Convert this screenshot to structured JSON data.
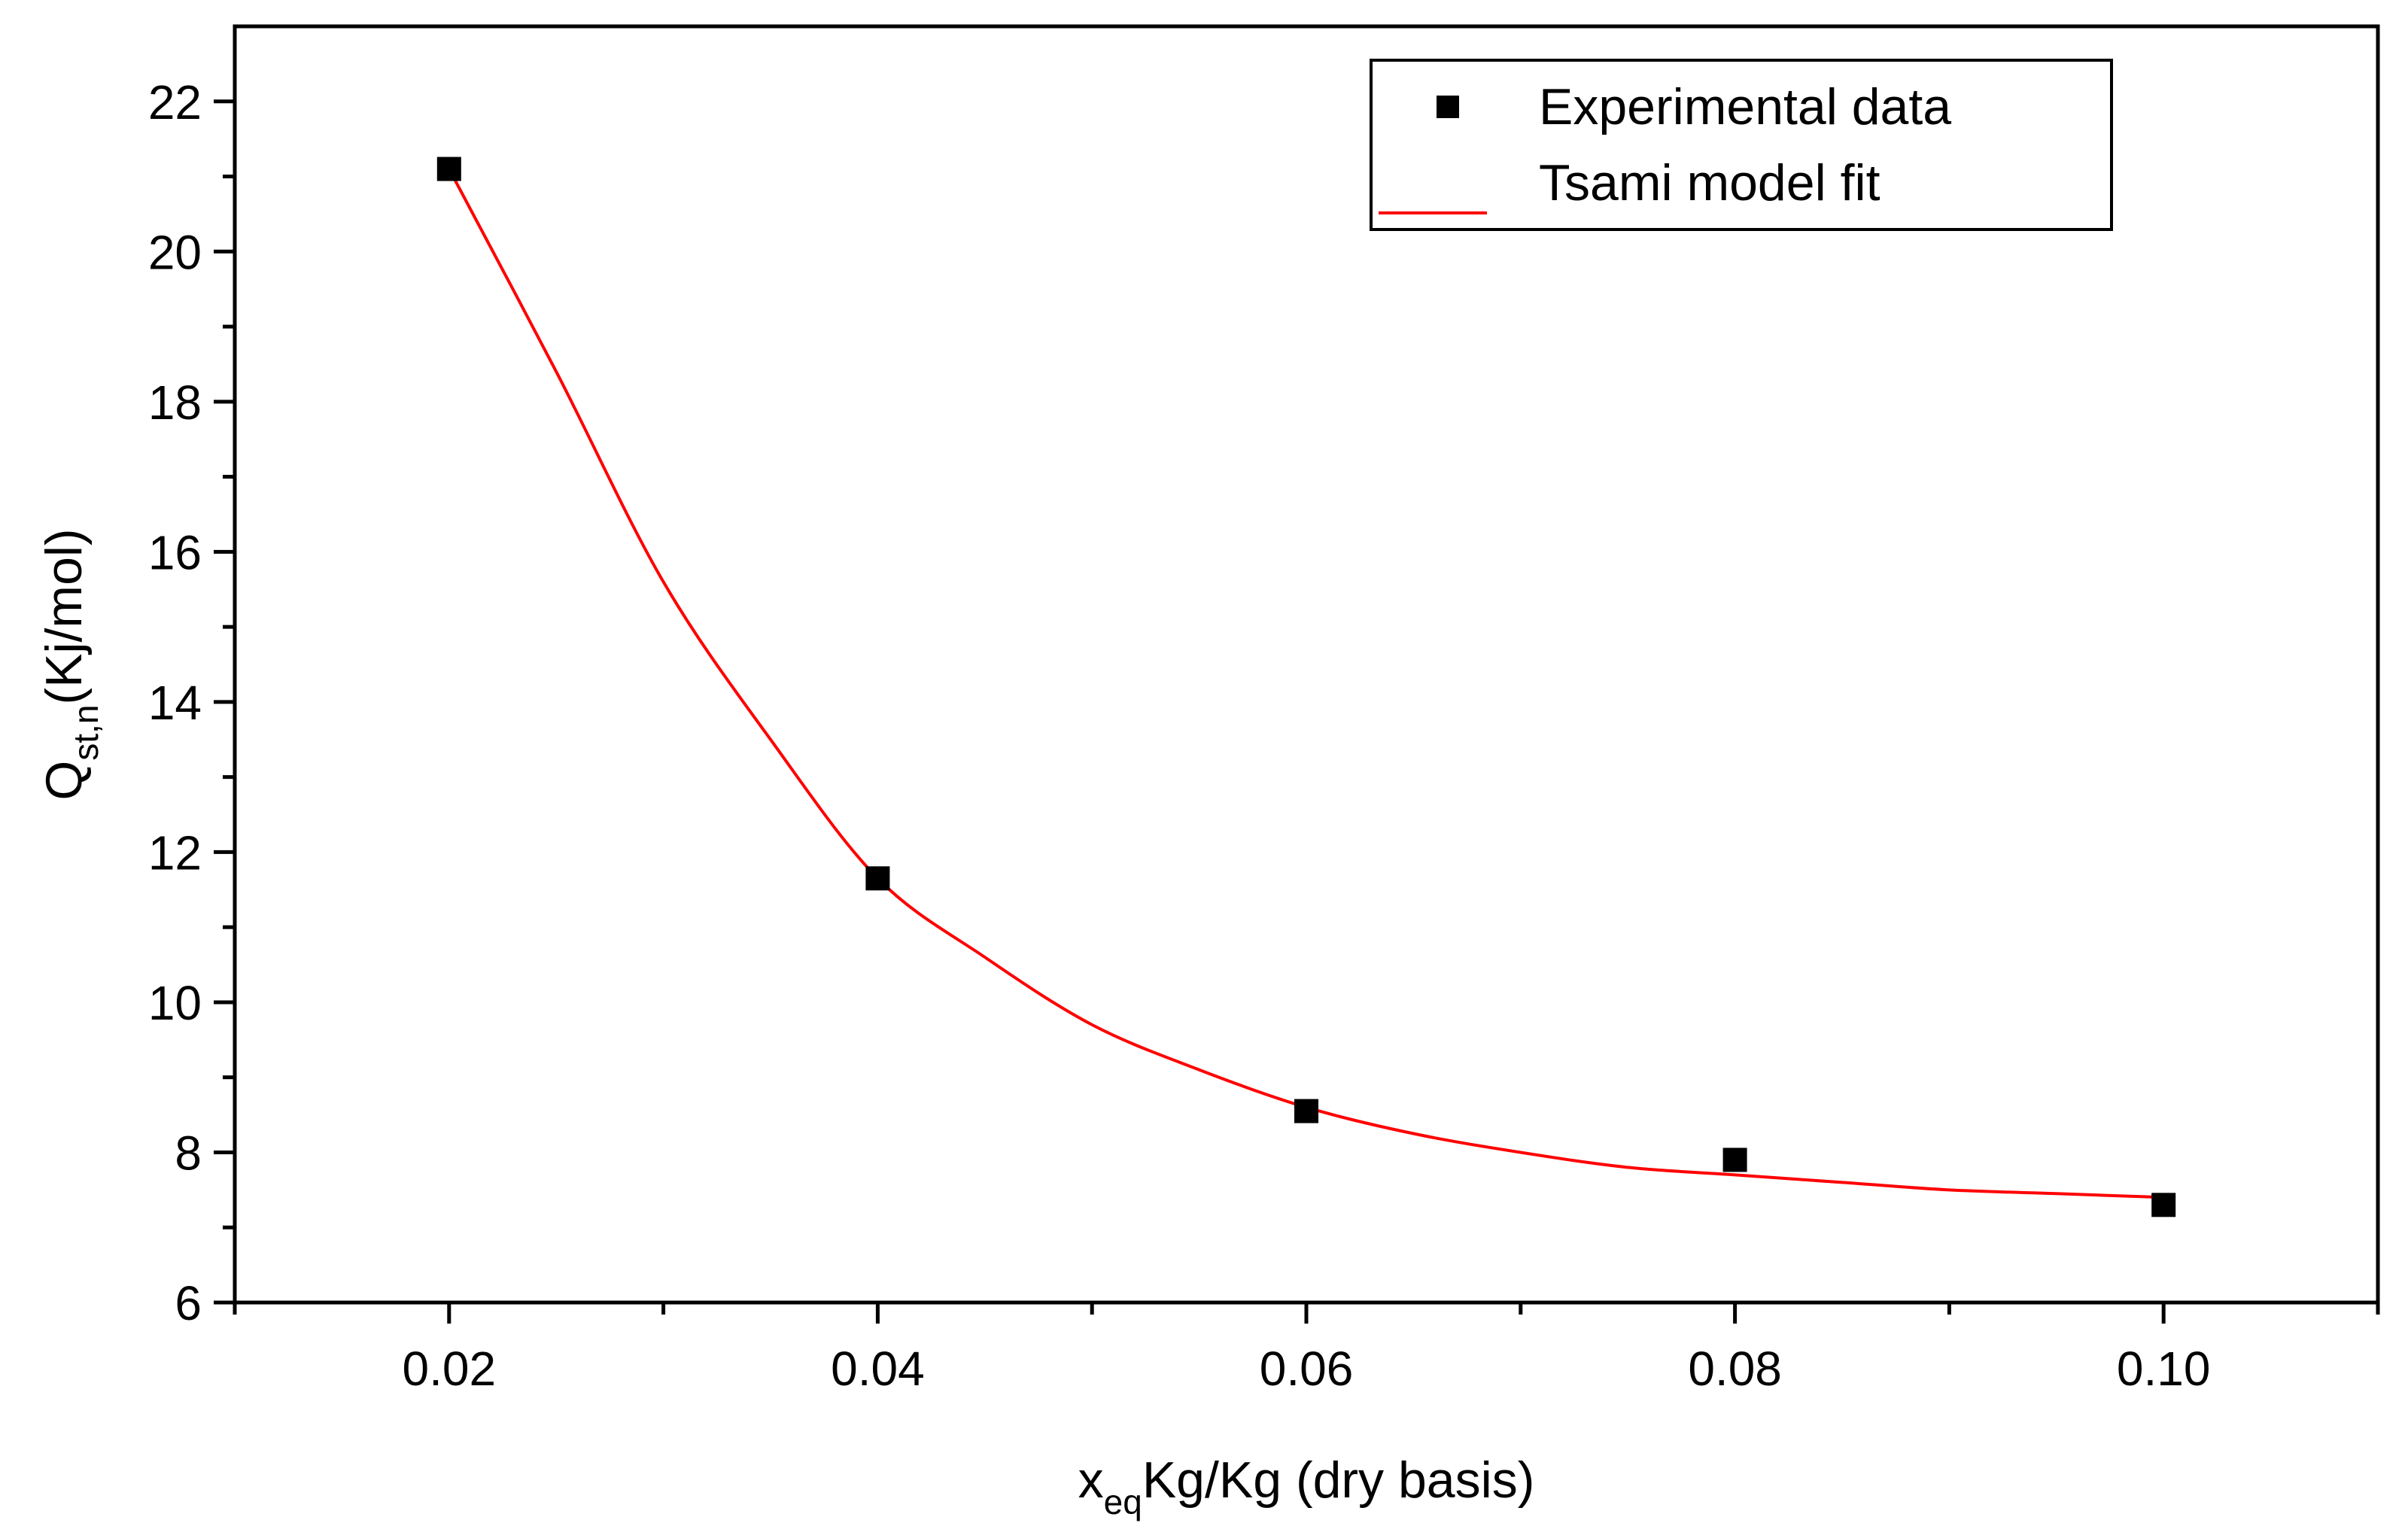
{
  "chart_data": {
    "type": "scatter",
    "title": "",
    "xlabel": {
      "base": "x",
      "sub": "eq",
      "rest": "Kg/Kg (dry basis)"
    },
    "ylabel": {
      "base": "Q",
      "sub": "st,n",
      "rest": "(Kj/mol)"
    },
    "xlim": [
      0.01,
      0.11
    ],
    "ylim": [
      6,
      23
    ],
    "x_major_ticks": [
      0.02,
      0.04,
      0.06,
      0.08,
      0.1
    ],
    "x_tick_labels": [
      "0.02",
      "0.04",
      "0.06",
      "0.08",
      "0.10"
    ],
    "x_minor_ticks": [
      0.01,
      0.03,
      0.05,
      0.07,
      0.09,
      0.11
    ],
    "y_major_ticks": [
      6,
      8,
      10,
      12,
      14,
      16,
      18,
      20,
      22
    ],
    "y_tick_labels": [
      "6",
      "8",
      "10",
      "12",
      "14",
      "16",
      "18",
      "20",
      "22"
    ],
    "y_minor_ticks": [
      7,
      9,
      11,
      13,
      15,
      17,
      19,
      21
    ],
    "grid": false,
    "legend_position": "top-right",
    "series": [
      {
        "name": "Experimental data",
        "kind": "markers",
        "marker": "square",
        "color": "#000000",
        "x": [
          0.02,
          0.04,
          0.06,
          0.08,
          0.1
        ],
        "y": [
          21.1,
          11.65,
          8.55,
          7.9,
          7.3
        ]
      },
      {
        "name": "Tsami model fit",
        "kind": "line",
        "color": "#ff0000",
        "x": [
          0.02,
          0.025,
          0.03,
          0.035,
          0.04,
          0.045,
          0.05,
          0.055,
          0.06,
          0.065,
          0.07,
          0.075,
          0.08,
          0.085,
          0.09,
          0.095,
          0.1
        ],
        "y": [
          21.1,
          18.4,
          15.6,
          13.5,
          11.65,
          10.6,
          9.7,
          9.1,
          8.6,
          8.25,
          8.0,
          7.8,
          7.7,
          7.6,
          7.5,
          7.45,
          7.4
        ]
      }
    ]
  }
}
